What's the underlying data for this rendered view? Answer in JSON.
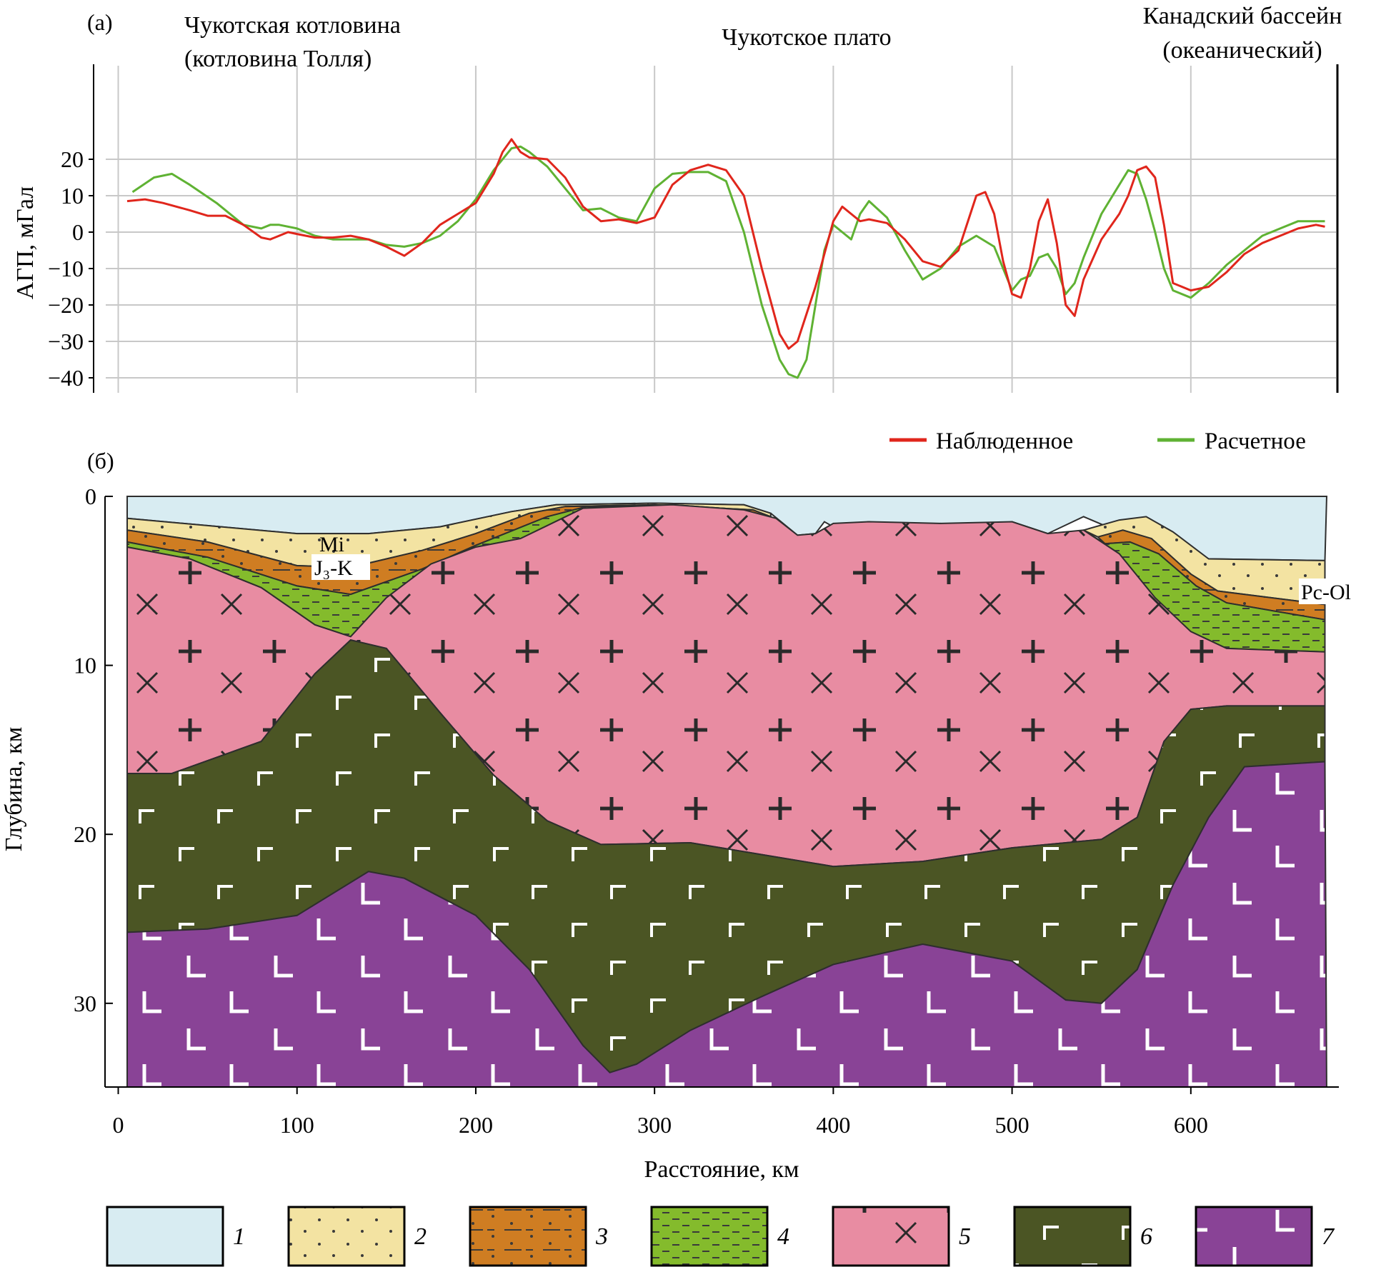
{
  "chart_data": [
    {
      "type": "line",
      "panel_label": "(а)",
      "ylabel": "АГП, мГал",
      "ylim": [
        -43,
        29
      ],
      "xlim": [
        -7,
        682
      ],
      "y_ticks": [
        20,
        10,
        0,
        -10,
        -20,
        -30,
        -40
      ],
      "grid": true,
      "legend_position": "bottom-right",
      "region_labels": [
        {
          "id": "chukchi-basin",
          "lines": [
            "Чукотская котловина",
            "(котловина Толля)"
          ]
        },
        {
          "id": "chukchi-plateau",
          "lines": [
            "Чукотское плато"
          ]
        },
        {
          "id": "canada-basin",
          "lines": [
            "Канадский бассейн",
            "(океанический)"
          ]
        }
      ],
      "series": [
        {
          "name": "Наблюденное",
          "color": "#e0261c",
          "x": [
            5,
            15,
            25,
            40,
            50,
            60,
            70,
            80,
            85,
            90,
            95,
            100,
            110,
            120,
            130,
            140,
            150,
            160,
            170,
            180,
            190,
            200,
            210,
            215,
            220,
            225,
            230,
            240,
            250,
            260,
            270,
            280,
            290,
            300,
            310,
            320,
            330,
            340,
            350,
            360,
            370,
            375,
            380,
            390,
            400,
            405,
            410,
            415,
            420,
            430,
            440,
            450,
            460,
            470,
            480,
            485,
            490,
            495,
            500,
            505,
            510,
            515,
            520,
            525,
            530,
            535,
            540,
            550,
            560,
            565,
            570,
            575,
            580,
            585,
            590,
            600,
            610,
            620,
            630,
            640,
            650,
            660,
            670,
            675
          ],
          "values": [
            8.5,
            9,
            8,
            6,
            4.5,
            4.5,
            2,
            -1.5,
            -2,
            -1,
            0,
            -0.5,
            -1.5,
            -1.5,
            -1,
            -2,
            -4,
            -6.5,
            -3,
            2,
            5,
            8,
            16,
            22,
            25.5,
            22,
            20.5,
            20,
            15,
            7,
            3,
            3.5,
            2.5,
            4,
            13,
            17,
            18.5,
            17,
            10,
            -10,
            -28,
            -32,
            -30,
            -15,
            3,
            7,
            5,
            3,
            3.5,
            2.5,
            -2,
            -8,
            -9.5,
            -5,
            10,
            11,
            5,
            -8,
            -17,
            -18,
            -10,
            3,
            9,
            -3,
            -20,
            -23,
            -13,
            -2,
            5,
            10,
            17,
            18,
            15,
            2,
            -14,
            -16,
            -15,
            -11,
            -6,
            -3,
            -1,
            1,
            2,
            1.5
          ]
        },
        {
          "name": "Расчетное",
          "color": "#5fb233",
          "x": [
            8,
            20,
            30,
            40,
            55,
            70,
            80,
            85,
            90,
            100,
            110,
            120,
            130,
            140,
            150,
            160,
            170,
            180,
            190,
            200,
            210,
            220,
            225,
            230,
            240,
            250,
            260,
            270,
            280,
            290,
            300,
            310,
            320,
            330,
            340,
            350,
            360,
            370,
            375,
            380,
            385,
            390,
            395,
            400,
            405,
            410,
            415,
            420,
            430,
            440,
            450,
            460,
            470,
            480,
            490,
            495,
            500,
            505,
            510,
            515,
            520,
            525,
            530,
            535,
            540,
            550,
            560,
            565,
            570,
            575,
            580,
            585,
            590,
            600,
            610,
            620,
            630,
            640,
            650,
            660,
            670,
            675
          ],
          "values": [
            11,
            15,
            16,
            13,
            8,
            2,
            1,
            2,
            2,
            1,
            -1,
            -2,
            -2,
            -2,
            -3.5,
            -4,
            -3,
            -1,
            3,
            9,
            17,
            23,
            23.5,
            22,
            18,
            12,
            6,
            6.5,
            4,
            3,
            12,
            16,
            16.5,
            16.5,
            14,
            0,
            -20,
            -35,
            -39,
            -40,
            -35,
            -20,
            -5,
            2,
            0,
            -2,
            5,
            8.5,
            4,
            -5,
            -13,
            -10,
            -4,
            -1,
            -4,
            -10,
            -16,
            -13,
            -12,
            -7,
            -6,
            -10,
            -17,
            -14,
            -7,
            5,
            13,
            17,
            16,
            9,
            0,
            -10,
            -16,
            -18,
            -14,
            -9,
            -5,
            -1,
            1,
            3,
            3,
            3
          ]
        }
      ]
    },
    {
      "type": "area",
      "subtype": "geological-cross-section",
      "panel_label": "(б)",
      "xlabel": "Расстояние, км",
      "ylabel": "Глубина, км",
      "xlim": [
        -7,
        682
      ],
      "ylim": [
        35.5,
        0
      ],
      "x_ticks": [
        0,
        100,
        200,
        300,
        400,
        500,
        600
      ],
      "y_ticks": [
        0,
        10,
        20,
        30
      ],
      "grid": false,
      "annotations": [
        "Mi",
        "J₃-K",
        "Pc-Ol"
      ],
      "layers": [
        {
          "id": 1,
          "label": "1",
          "color": "#d8ecf2",
          "pattern": "none"
        },
        {
          "id": 2,
          "label": "2",
          "color": "#f3e3a2",
          "pattern": "dots"
        },
        {
          "id": 3,
          "label": "3",
          "color": "#cf7d22",
          "pattern": "dots-dashes"
        },
        {
          "id": 4,
          "label": "4",
          "color": "#84bb2c",
          "pattern": "dashes"
        },
        {
          "id": 5,
          "label": "5",
          "color": "#e88ca2",
          "pattern": "crosses-and-x"
        },
        {
          "id": 6,
          "label": "6",
          "color": "#4b5524",
          "pattern": "corner-marks"
        },
        {
          "id": 7,
          "label": "7",
          "color": "#894396",
          "pattern": "l-marks"
        }
      ],
      "boundaries_depth_km": {
        "water_bottom": [
          [
            5,
            1.3
          ],
          [
            100,
            2.2
          ],
          [
            140,
            2.2
          ],
          [
            180,
            1.8
          ],
          [
            220,
            0.9
          ],
          [
            245,
            0.5
          ],
          [
            300,
            0.4
          ],
          [
            350,
            0.5
          ],
          [
            365,
            1
          ],
          [
            380,
            2.3
          ],
          [
            390,
            2.2
          ],
          [
            395,
            1.5
          ],
          [
            400,
            1.8
          ],
          [
            420,
            1.5
          ],
          [
            440,
            1.9
          ],
          [
            460,
            1.6
          ],
          [
            480,
            1.9
          ],
          [
            500,
            1.5
          ],
          [
            520,
            2.2
          ],
          [
            540,
            1.2
          ],
          [
            560,
            2.1
          ],
          [
            575,
            1.6
          ],
          [
            585,
            2.6
          ],
          [
            595,
            3.1
          ],
          [
            610,
            3.7
          ],
          [
            675,
            3.8
          ]
        ],
        "mi_base": [
          [
            5,
            2
          ],
          [
            50,
            2.7
          ],
          [
            100,
            4.1
          ],
          [
            130,
            4.2
          ],
          [
            170,
            3.2
          ],
          [
            200,
            2.2
          ],
          [
            230,
            1
          ],
          [
            250,
            0.6
          ],
          [
            300,
            0.5
          ],
          [
            355,
            0.8
          ],
          [
            365,
            1.2
          ]
        ],
        "k3_base": [
          [
            5,
            2.7
          ],
          [
            50,
            3.6
          ],
          [
            100,
            5.3
          ],
          [
            130,
            5.8
          ],
          [
            170,
            4.3
          ],
          [
            200,
            2.9
          ],
          [
            240,
            1.2
          ],
          [
            262,
            0.6
          ],
          [
            300,
            0.6
          ],
          [
            358,
            1.1
          ],
          [
            365,
            1.5
          ]
        ],
        "pink_top": [
          [
            5,
            3
          ],
          [
            40,
            3.7
          ],
          [
            80,
            5.4
          ],
          [
            110,
            7.6
          ],
          [
            130,
            8.3
          ],
          [
            150,
            6
          ],
          [
            175,
            4
          ],
          [
            200,
            3
          ],
          [
            225,
            2.5
          ],
          [
            260,
            0.7
          ],
          [
            310,
            0.5
          ],
          [
            350,
            0.8
          ],
          [
            368,
            1.3
          ],
          [
            380,
            2.3
          ],
          [
            390,
            2.2
          ],
          [
            400,
            1.6
          ],
          [
            420,
            1.5
          ],
          [
            460,
            1.6
          ],
          [
            500,
            1.5
          ],
          [
            520,
            2.2
          ],
          [
            540,
            2
          ],
          [
            560,
            3.4
          ],
          [
            580,
            6
          ],
          [
            600,
            8
          ],
          [
            620,
            9
          ],
          [
            675,
            9.2
          ]
        ],
        "pink_base": [
          [
            5,
            16.4
          ],
          [
            30,
            16.4
          ],
          [
            80,
            14.5
          ],
          [
            110,
            10.5
          ],
          [
            130,
            8.5
          ],
          [
            150,
            9
          ],
          [
            180,
            12.8
          ],
          [
            210,
            16.5
          ],
          [
            240,
            19.2
          ],
          [
            270,
            20.6
          ],
          [
            320,
            20.5
          ],
          [
            360,
            21.2
          ],
          [
            400,
            21.9
          ],
          [
            450,
            21.6
          ],
          [
            500,
            20.8
          ],
          [
            550,
            20.3
          ],
          [
            570,
            19
          ],
          [
            585,
            14.5
          ],
          [
            600,
            12.6
          ],
          [
            620,
            12.4
          ],
          [
            675,
            12.4
          ]
        ],
        "green_base": [
          [
            5,
            25.8
          ],
          [
            50,
            25.6
          ],
          [
            100,
            24.8
          ],
          [
            140,
            22.2
          ],
          [
            160,
            22.6
          ],
          [
            200,
            24.8
          ],
          [
            230,
            28
          ],
          [
            260,
            32.5
          ],
          [
            275,
            34.1
          ],
          [
            290,
            33.6
          ],
          [
            320,
            31.6
          ],
          [
            360,
            29.6
          ],
          [
            400,
            27.7
          ],
          [
            450,
            26.5
          ],
          [
            500,
            27.5
          ],
          [
            530,
            29.8
          ],
          [
            550,
            30
          ],
          [
            570,
            28
          ],
          [
            590,
            23
          ],
          [
            610,
            19
          ],
          [
            630,
            16
          ],
          [
            675,
            15.7
          ]
        ]
      }
    }
  ]
}
